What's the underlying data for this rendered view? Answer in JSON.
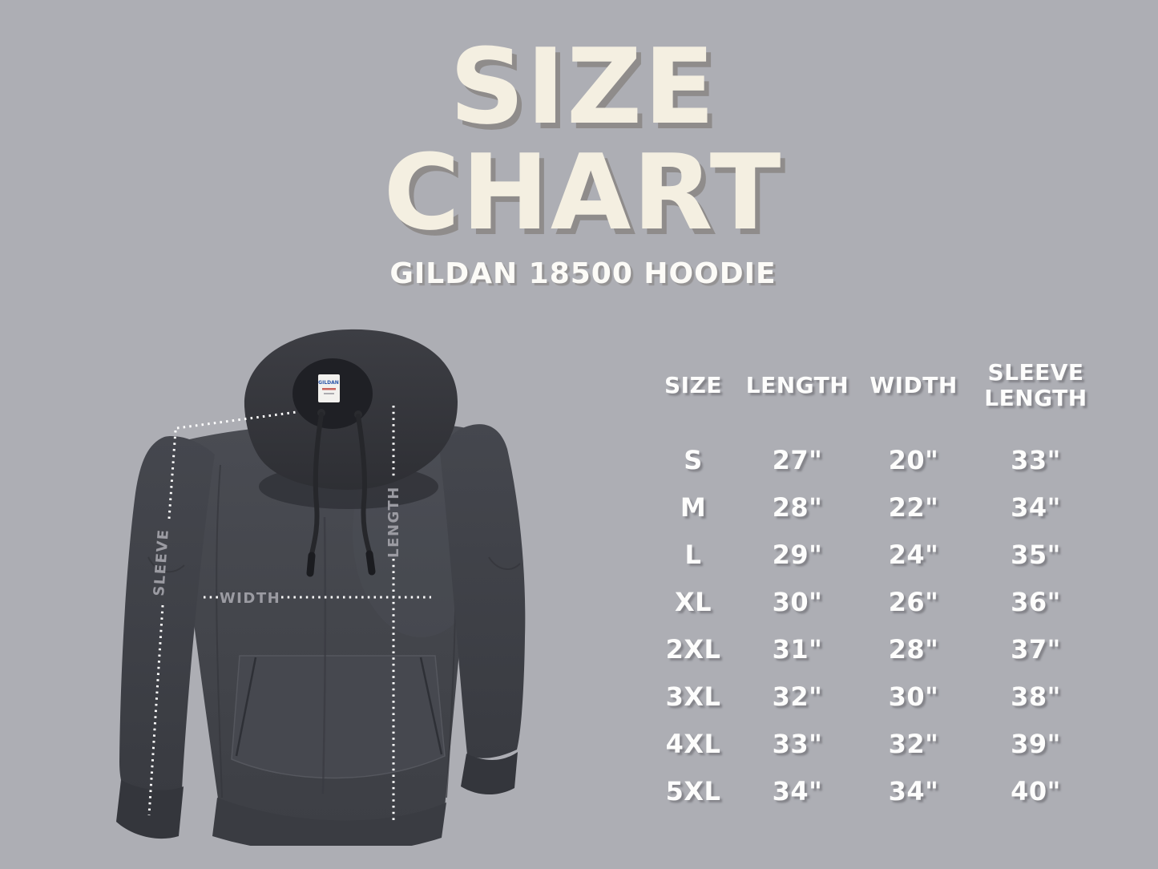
{
  "background_color": "#adaeb4",
  "header": {
    "title_line1": "SIZE",
    "title_line2": "CHART",
    "subtitle": "GILDAN 18500 HOODIE"
  },
  "hoodie": {
    "tag_label": "GILDAN",
    "measure_labels": {
      "sleeve": "SLEEVE",
      "length": "LENGTH",
      "width": "WIDTH"
    },
    "colors": {
      "body": "#43454b",
      "hood": "#36373d",
      "dotted_line": "#ffffff",
      "label_gray": "#9b9ba2"
    }
  },
  "chart_data": {
    "type": "table",
    "title": "SIZE CHART",
    "subtitle": "GILDAN 18500 HOODIE",
    "columns": [
      "SIZE",
      "LENGTH",
      "WIDTH",
      "SLEEVE LENGTH"
    ],
    "rows": [
      {
        "size": "S",
        "length": "27\"",
        "width": "20\"",
        "sleeve_length": "33\""
      },
      {
        "size": "M",
        "length": "28\"",
        "width": "22\"",
        "sleeve_length": "34\""
      },
      {
        "size": "L",
        "length": "29\"",
        "width": "24\"",
        "sleeve_length": "35\""
      },
      {
        "size": "XL",
        "length": "30\"",
        "width": "26\"",
        "sleeve_length": "36\""
      },
      {
        "size": "2XL",
        "length": "31\"",
        "width": "28\"",
        "sleeve_length": "37\""
      },
      {
        "size": "3XL",
        "length": "32\"",
        "width": "30\"",
        "sleeve_length": "38\""
      },
      {
        "size": "4XL",
        "length": "33\"",
        "width": "32\"",
        "sleeve_length": "39\""
      },
      {
        "size": "5XL",
        "length": "34\"",
        "width": "34\"",
        "sleeve_length": "40\""
      }
    ]
  }
}
